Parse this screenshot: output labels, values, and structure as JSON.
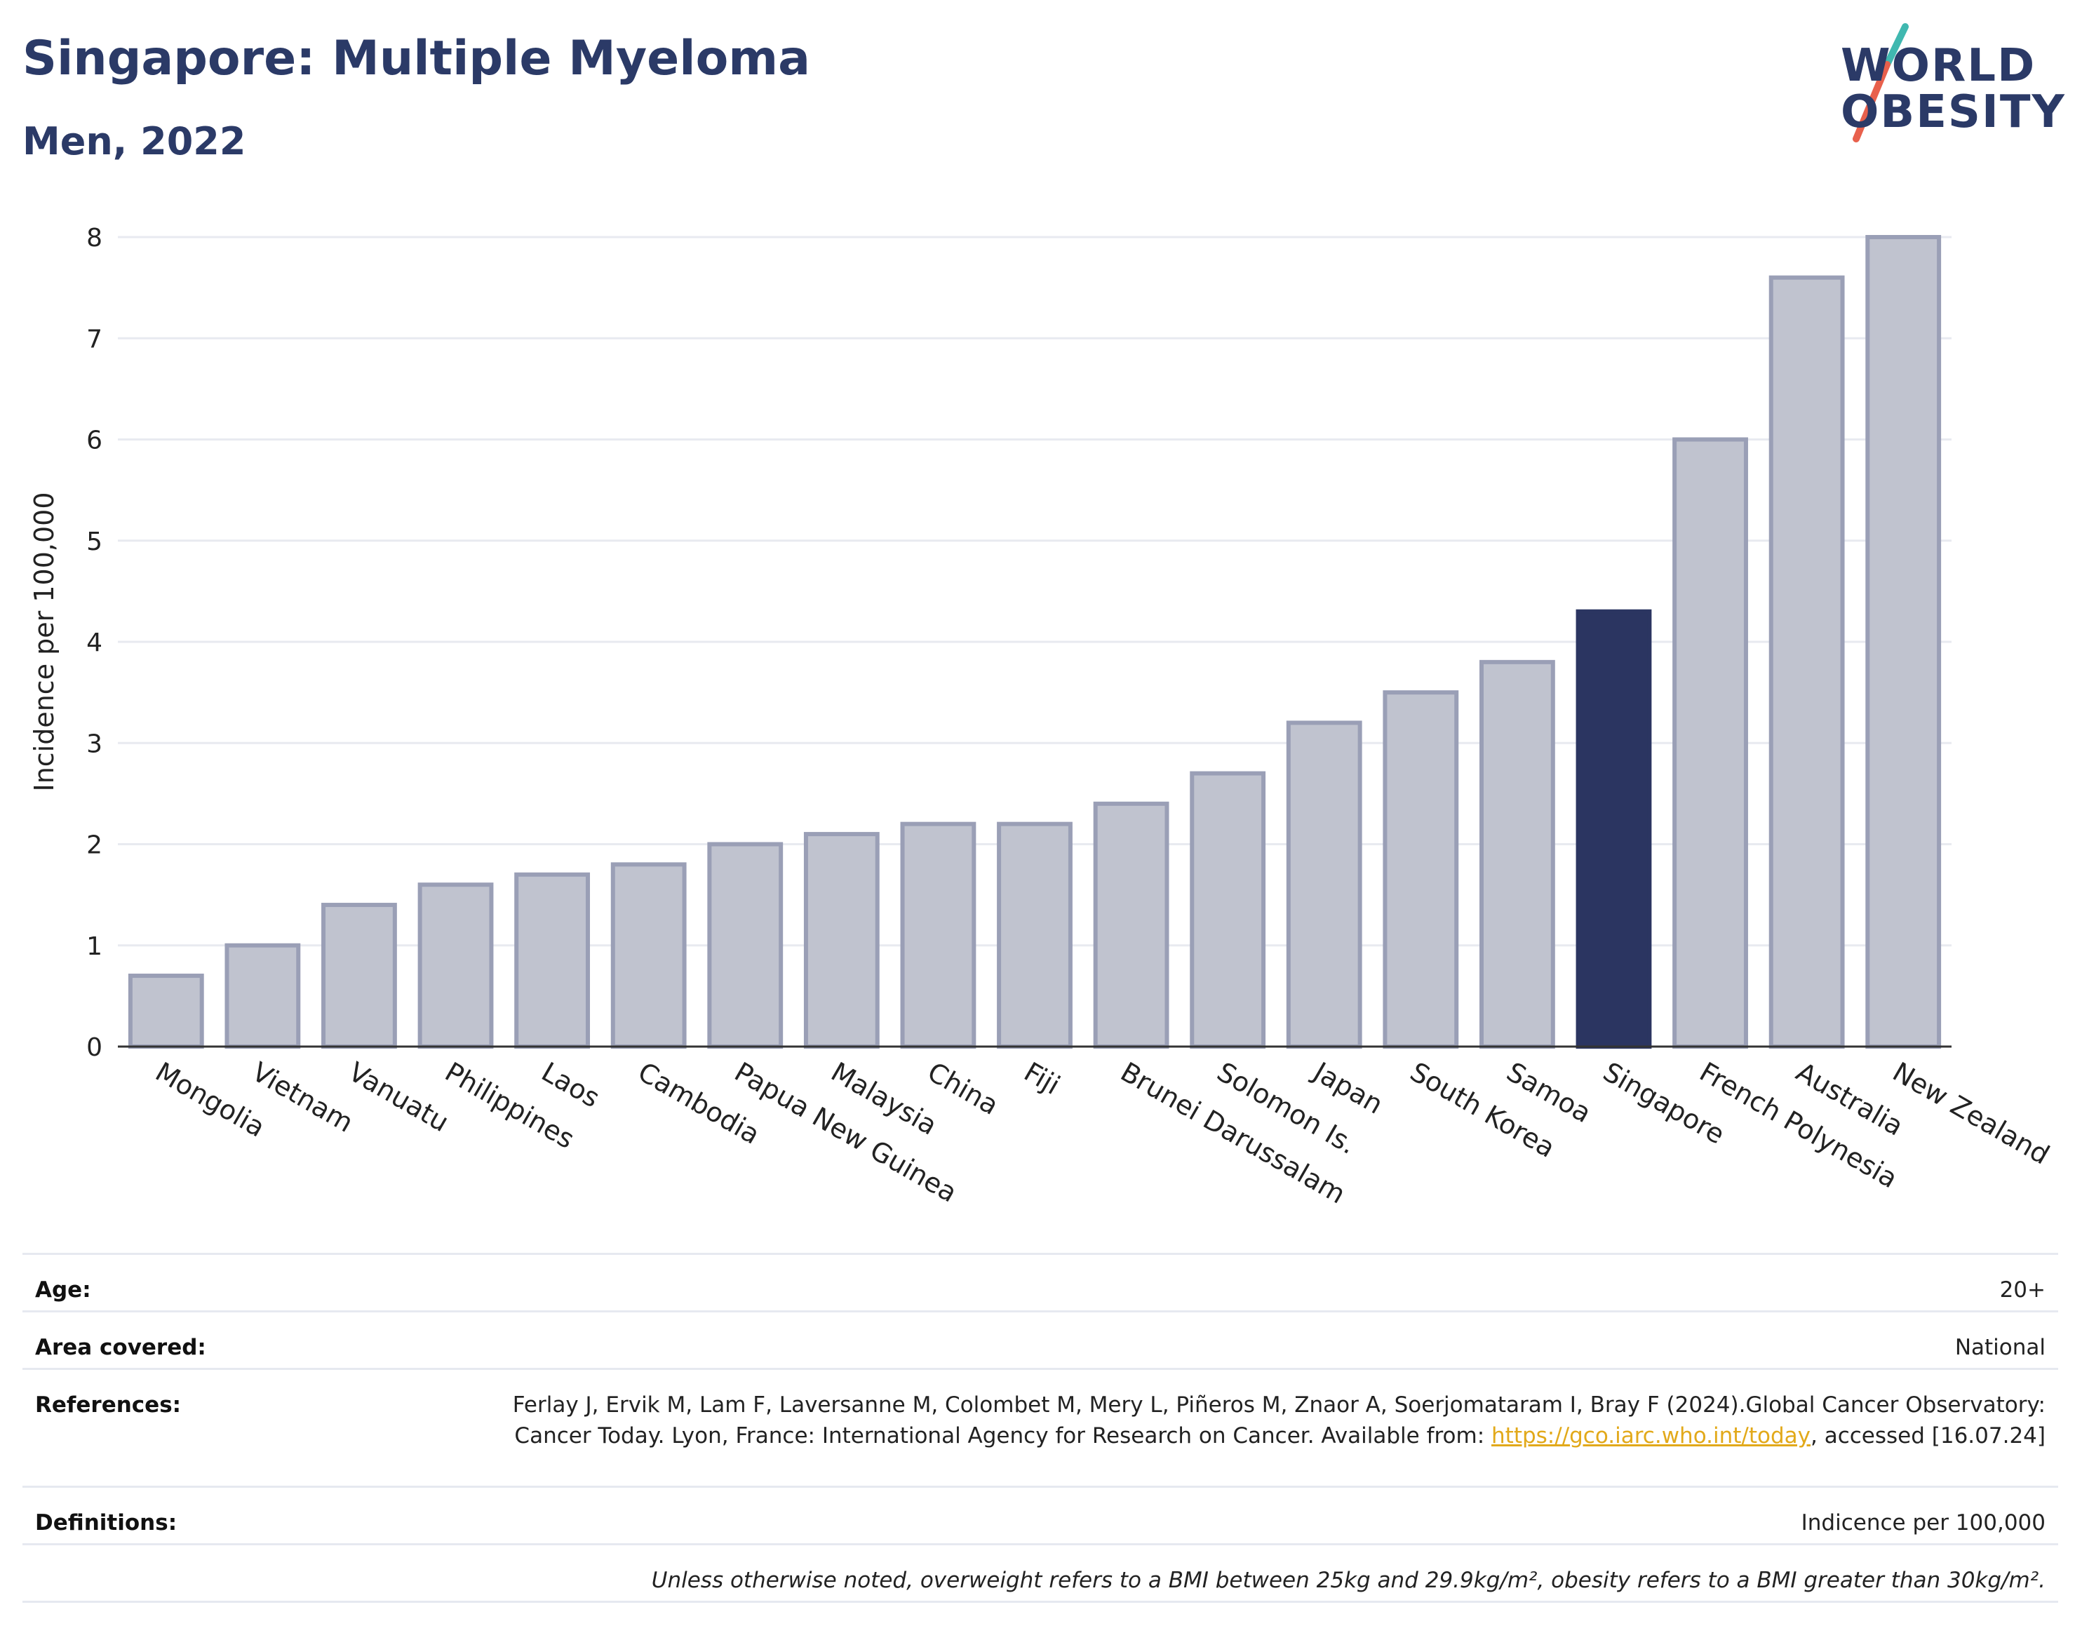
{
  "header": {
    "title": "Singapore: Multiple Myeloma",
    "subtitle": "Men, 2022"
  },
  "logo": {
    "line1": "WORLD",
    "line2": "OBESITY",
    "slash_colors": [
      "#40b8b0",
      "#e8604c"
    ]
  },
  "colors": {
    "bar": "#c0c3cf",
    "bar_stroke": "#9a9fb6",
    "highlight": "#2b3561",
    "title": "#2b3a67",
    "gridline": "#e8eaf0",
    "link": "#e2a91a"
  },
  "chart_data": {
    "type": "bar",
    "title": "Singapore: Multiple Myeloma",
    "subtitle": "Men, 2022",
    "ylabel": "Incidence per 100,000",
    "xlabel": "",
    "ylim": [
      0,
      8
    ],
    "yticks": [
      0,
      1,
      2,
      3,
      4,
      5,
      6,
      7,
      8
    ],
    "grid": true,
    "legend": "none",
    "highlight": "Singapore",
    "categories": [
      "Mongolia",
      "Vietnam",
      "Vanuatu",
      "Philippines",
      "Laos",
      "Cambodia",
      "Papua New Guinea",
      "Malaysia",
      "China",
      "Fiji",
      "Brunei Darussalam",
      "Solomon Is.",
      "Japan",
      "South Korea",
      "Samoa",
      "Singapore",
      "French Polynesia",
      "Australia",
      "New Zealand"
    ],
    "values": [
      0.7,
      1.0,
      1.4,
      1.6,
      1.7,
      1.8,
      2.0,
      2.1,
      2.2,
      2.2,
      2.4,
      2.7,
      3.2,
      3.5,
      3.8,
      4.3,
      6.0,
      7.6,
      8.0
    ]
  },
  "meta": {
    "age_label": "Age:",
    "age_value": "20+",
    "area_label": "Area covered:",
    "area_value": "National",
    "references_label": "References:",
    "references_text": "Ferlay J, Ervik M, Lam F, Laversanne M, Colombet M, Mery L, Piñeros M, Znaor A, Soerjomataram I, Bray F (2024).Global Cancer Observatory: Cancer Today. Lyon, France: International Agency for Research on Cancer. Available from: ",
    "references_link": "https://gco.iarc.who.int/today",
    "references_suffix": ", accessed [16.07.24]",
    "definitions_label": "Definitions:",
    "definitions_value": "Indicence per 100,000",
    "note": "Unless otherwise noted, overweight refers to a BMI between 25kg and 29.9kg/m², obesity refers to a BMI greater than 30kg/m²."
  }
}
